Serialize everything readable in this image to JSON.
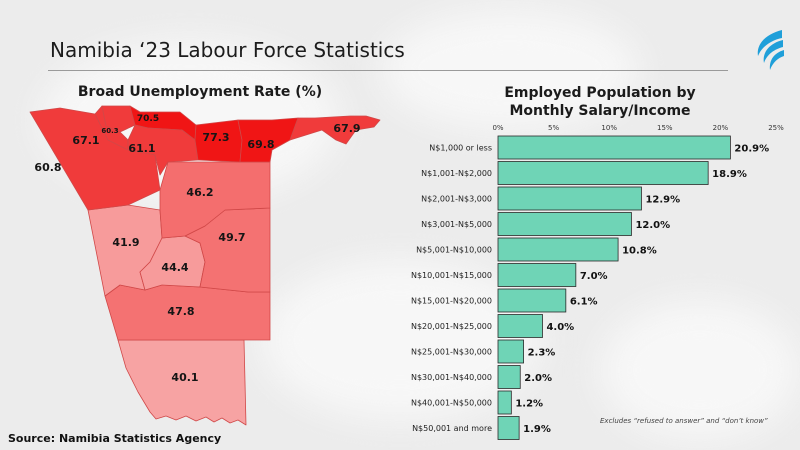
{
  "header": {
    "title": "Namibia ‘23 Labour Force Statistics",
    "source": "Source: Namibia Statistics Agency",
    "logo": "swoosh-logo-icon"
  },
  "colors": {
    "bar": "#6fd4b6",
    "bar_stroke": "#2a2a2a",
    "map_darkest": "#f01515",
    "map_dark": "#f03b3b",
    "map_mid": "#f46e6e",
    "map_light": "#f79b9b",
    "map_lightest": "#f7a0a0"
  },
  "map": {
    "title": "Broad Unemployment Rate (%)",
    "regions": [
      {
        "id": "kunene",
        "value": "60.8"
      },
      {
        "id": "omusati",
        "value": "67.1"
      },
      {
        "id": "ohangwena",
        "value": "70.5"
      },
      {
        "id": "oshana",
        "value": "60.3"
      },
      {
        "id": "oshikoto",
        "value": "61.1"
      },
      {
        "id": "kavango-west",
        "value": "77.3"
      },
      {
        "id": "kavango-east",
        "value": "69.8"
      },
      {
        "id": "zambezi",
        "value": "67.9"
      },
      {
        "id": "otjozondjupa",
        "value": "46.2"
      },
      {
        "id": "erongo",
        "value": "41.9"
      },
      {
        "id": "omaheke",
        "value": "49.7"
      },
      {
        "id": "khomas",
        "value": "44.4"
      },
      {
        "id": "hardap",
        "value": "47.8"
      },
      {
        "id": "karas",
        "value": "40.1"
      }
    ]
  },
  "chart_data": {
    "type": "bar",
    "orientation": "horizontal",
    "title": "Employed Population by Monthly Salary/Income",
    "xlabel": "",
    "ylabel": "",
    "xlim": [
      0,
      25
    ],
    "ticks": [
      "0%",
      "5%",
      "10%",
      "15%",
      "20%",
      "25%"
    ],
    "categories": [
      "N$1,000 or less",
      "N$1,001-N$2,000",
      "N$2,001-N$3,000",
      "N$3,001-N$5,000",
      "N$5,001-N$10,000",
      "N$10,001-N$15,000",
      "N$15,001-N$20,000",
      "N$20,001-N$25,000",
      "N$25,001-N$30,000",
      "N$30,001-N$40,000",
      "N$40,001-N$50,000",
      "N$50,001 and more"
    ],
    "values": [
      20.9,
      18.9,
      12.9,
      12.0,
      10.8,
      7.0,
      6.1,
      4.0,
      2.3,
      2.0,
      1.2,
      1.9
    ],
    "value_labels": [
      "20.9%",
      "18.9%",
      "12.9%",
      "12.0%",
      "10.8%",
      "7.0%",
      "6.1%",
      "4.0%",
      "2.3%",
      "2.0%",
      "1.2%",
      "1.9%"
    ],
    "footnote": "Excludes “refused to answer” and “don’t know”"
  }
}
